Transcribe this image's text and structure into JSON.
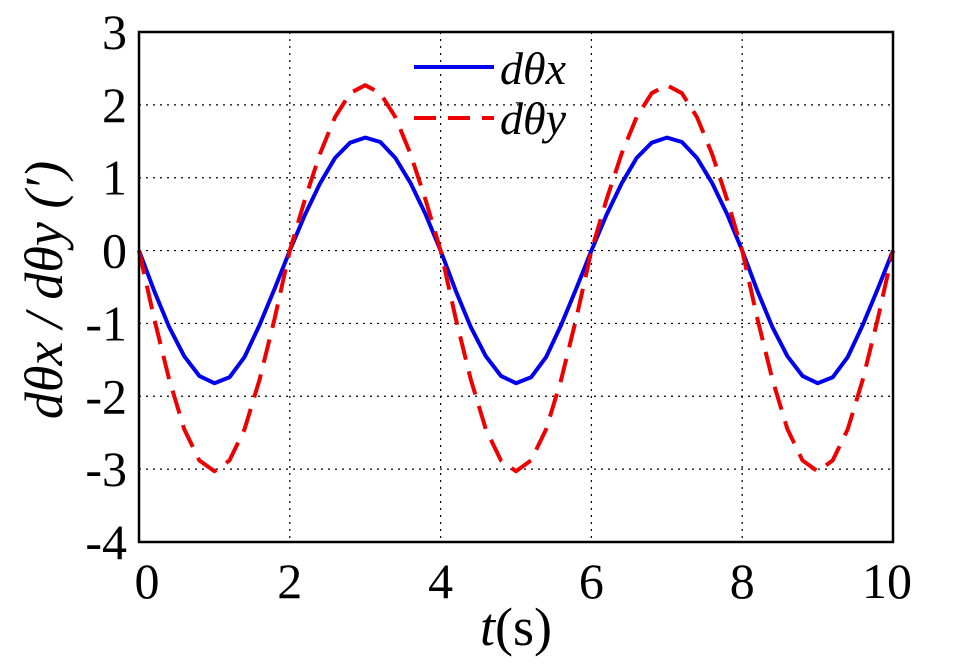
{
  "chart_data": {
    "type": "line",
    "xlabel": "t(s)",
    "ylabel": "dθx / dθy (′)",
    "xlim": [
      0,
      10
    ],
    "ylim": [
      -4,
      3
    ],
    "xticks": [
      "0",
      "2",
      "4",
      "6",
      "8",
      "10"
    ],
    "yticks": [
      "3",
      "2",
      "1",
      "0",
      "-1",
      "-2",
      "-3",
      "-4"
    ],
    "grid": true,
    "legend_position": "top-center",
    "x": [
      0,
      0.2,
      0.4,
      0.6,
      0.8,
      1.0,
      1.2,
      1.4,
      1.6,
      1.8,
      2.0,
      2.2,
      2.4,
      2.6,
      2.8,
      3.0,
      3.2,
      3.4,
      3.6,
      3.8,
      4.0,
      4.2,
      4.4,
      4.6,
      4.8,
      5.0,
      5.2,
      5.4,
      5.6,
      5.8,
      6.0,
      6.2,
      6.4,
      6.6,
      6.8,
      7.0,
      7.2,
      7.4,
      7.6,
      7.8,
      8.0,
      8.2,
      8.4,
      8.6,
      8.8,
      9.0,
      9.2,
      9.4,
      9.6,
      9.8,
      10.0
    ],
    "series": [
      {
        "name": "dθx",
        "color": "#0000ee",
        "dash": "solid",
        "values": [
          0,
          -0.55,
          -1.05,
          -1.45,
          -1.72,
          -1.82,
          -1.74,
          -1.46,
          -1.02,
          -0.52,
          0,
          0.49,
          0.92,
          1.27,
          1.48,
          1.55,
          1.49,
          1.27,
          0.93,
          0.5,
          0,
          -0.55,
          -1.05,
          -1.45,
          -1.72,
          -1.82,
          -1.74,
          -1.46,
          -1.02,
          -0.52,
          0,
          0.49,
          0.92,
          1.27,
          1.48,
          1.55,
          1.49,
          1.27,
          0.93,
          0.5,
          0,
          -0.55,
          -1.05,
          -1.45,
          -1.72,
          -1.82,
          -1.74,
          -1.46,
          -1.02,
          -0.52,
          0
        ]
      },
      {
        "name": "dθy",
        "color": "#ee0000",
        "dash": "dashed",
        "values": [
          0,
          -0.93,
          -1.77,
          -2.45,
          -2.88,
          -3.03,
          -2.88,
          -2.45,
          -1.77,
          -0.93,
          0,
          0.7,
          1.33,
          1.83,
          2.16,
          2.27,
          2.16,
          1.83,
          1.33,
          0.7,
          0,
          -0.93,
          -1.77,
          -2.45,
          -2.88,
          -3.03,
          -2.88,
          -2.45,
          -1.77,
          -0.93,
          0,
          0.7,
          1.33,
          1.83,
          2.16,
          2.27,
          2.16,
          1.83,
          1.33,
          0.7,
          0,
          -0.93,
          -1.77,
          -2.45,
          -2.88,
          -3.03,
          -2.88,
          -2.45,
          -1.77,
          -0.93,
          0
        ]
      }
    ]
  }
}
